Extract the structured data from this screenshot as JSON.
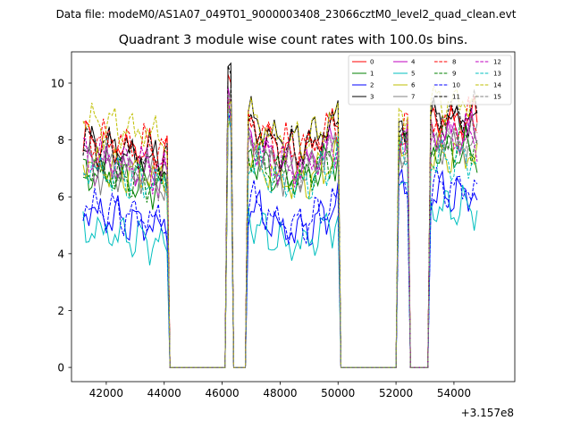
{
  "figure": {
    "suptitle": "Data file: modeM0/AS1A07_049T01_9000003408_23066cztM0_level2_quad_clean.evt"
  },
  "chart_data": {
    "type": "line",
    "title": "Quadrant 3 module wise count rates with 100.0s bins.",
    "xlabel": "",
    "ylabel": "",
    "x_offset_label": "+3.157e8",
    "xlim": [
      40800,
      56100
    ],
    "ylim": [
      -0.5,
      11.1
    ],
    "xticks": [
      42000,
      44000,
      46000,
      48000,
      50000,
      52000,
      54000
    ],
    "xtick_labels": [
      "42000",
      "44000",
      "46000",
      "48000",
      "50000",
      "52000",
      "54000"
    ],
    "yticks": [
      0,
      2,
      4,
      6,
      8,
      10
    ],
    "ytick_labels": [
      "0",
      "2",
      "4",
      "6",
      "8",
      "10"
    ],
    "grid": false,
    "legend_position": "top-right",
    "legend_columns": 4,
    "segments_x": [
      [
        41200,
        44100
      ],
      [
        44200,
        46100
      ],
      [
        46200,
        46300
      ],
      [
        46400,
        46800
      ],
      [
        46900,
        50000
      ],
      [
        50100,
        52000
      ],
      [
        52100,
        52400
      ],
      [
        52500,
        53100
      ],
      [
        53200,
        54800
      ]
    ],
    "series": [
      {
        "name": "0",
        "color": "#ff0000",
        "dash": "solid",
        "profile": [
          8.0,
          0,
          9.5,
          0,
          8.6,
          0,
          8.2,
          0,
          8.7
        ]
      },
      {
        "name": "1",
        "color": "#008000",
        "dash": "solid",
        "profile": [
          6.9,
          0,
          9.2,
          0,
          7.6,
          0,
          7.7,
          0,
          7.6
        ]
      },
      {
        "name": "2",
        "color": "#0000ff",
        "dash": "solid",
        "profile": [
          5.5,
          0,
          9.0,
          0,
          5.8,
          0,
          6.4,
          0,
          6.1
        ]
      },
      {
        "name": "3",
        "color": "#000000",
        "dash": "solid",
        "profile": [
          7.8,
          0,
          10.6,
          0,
          8.9,
          0,
          8.5,
          0,
          8.7
        ]
      },
      {
        "name": "4",
        "color": "#bf00bf",
        "dash": "solid",
        "profile": [
          7.3,
          0,
          9.3,
          0,
          8.1,
          0,
          8.0,
          0,
          8.2
        ]
      },
      {
        "name": "5",
        "color": "#00bfbf",
        "dash": "solid",
        "profile": [
          4.9,
          0,
          8.9,
          0,
          5.3,
          0,
          6.1,
          0,
          5.6
        ]
      },
      {
        "name": "6",
        "color": "#bfbf00",
        "dash": "solid",
        "profile": [
          7.2,
          0,
          9.1,
          0,
          7.5,
          0,
          7.6,
          0,
          7.5
        ]
      },
      {
        "name": "7",
        "color": "#808080",
        "dash": "solid",
        "profile": [
          7.1,
          0,
          9.0,
          0,
          7.8,
          0,
          7.5,
          0,
          7.8
        ]
      },
      {
        "name": "8",
        "color": "#ff0000",
        "dash": "dashed",
        "profile": [
          8.2,
          0,
          9.3,
          0,
          8.7,
          0,
          8.4,
          0,
          8.6
        ]
      },
      {
        "name": "9",
        "color": "#008000",
        "dash": "dashed",
        "profile": [
          7.0,
          0,
          9.1,
          0,
          7.7,
          0,
          7.8,
          0,
          7.9
        ]
      },
      {
        "name": "10",
        "color": "#0000ff",
        "dash": "dashed",
        "profile": [
          5.7,
          0,
          9.0,
          0,
          6.0,
          0,
          6.5,
          0,
          6.3
        ]
      },
      {
        "name": "11",
        "color": "#000000",
        "dash": "dashed",
        "profile": [
          7.9,
          0,
          9.8,
          0,
          8.6,
          0,
          8.6,
          0,
          8.9
        ]
      },
      {
        "name": "12",
        "color": "#bf00bf",
        "dash": "dashed",
        "profile": [
          7.5,
          0,
          9.2,
          0,
          8.0,
          0,
          7.9,
          0,
          8.1
        ]
      },
      {
        "name": "13",
        "color": "#00bfbf",
        "dash": "dashed",
        "profile": [
          7.0,
          0,
          9.0,
          0,
          7.4,
          0,
          7.4,
          0,
          7.3
        ]
      },
      {
        "name": "14",
        "color": "#bfbf00",
        "dash": "dashed",
        "profile": [
          8.7,
          0,
          9.4,
          0,
          8.9,
          0,
          8.9,
          0,
          9.3
        ]
      },
      {
        "name": "15",
        "color": "#808080",
        "dash": "dashed",
        "profile": [
          7.3,
          0,
          9.1,
          0,
          7.9,
          0,
          7.7,
          0,
          8.0
        ]
      }
    ]
  }
}
